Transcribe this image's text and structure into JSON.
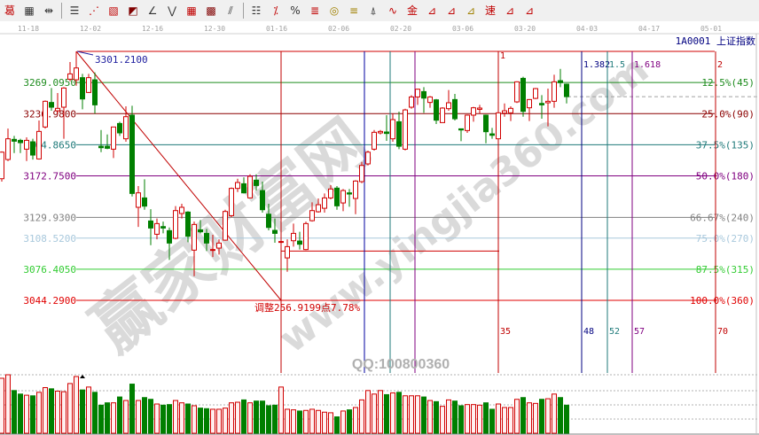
{
  "toolbar": {
    "icons": [
      {
        "name": "draw-text-icon",
        "glyph": "葛",
        "color": "#c00000"
      },
      {
        "name": "grid-icon",
        "glyph": "▦",
        "color": "#333333"
      },
      {
        "name": "measure-width-icon",
        "glyph": "⇹",
        "color": "#333333"
      },
      {
        "name": "sep"
      },
      {
        "name": "horizontal-lines-icon",
        "glyph": "☰",
        "color": "#333333"
      },
      {
        "name": "fan-lines-icon",
        "glyph": "⋰",
        "color": "#c00000"
      },
      {
        "name": "gann-box-icon",
        "glyph": "▧",
        "color": "#c00000"
      },
      {
        "name": "gann-square-icon",
        "glyph": "◩",
        "color": "#800000"
      },
      {
        "name": "angle-line-icon",
        "glyph": "∠",
        "color": "#333333"
      },
      {
        "name": "zigzag-icon",
        "glyph": "⋁",
        "color": "#333333"
      },
      {
        "name": "box-grid-icon",
        "glyph": "▦",
        "color": "#c00000"
      },
      {
        "name": "box-grid-2-icon",
        "glyph": "▩",
        "color": "#800000"
      },
      {
        "name": "parallel-lines-icon",
        "glyph": "⫽",
        "color": "#333333"
      },
      {
        "name": "sep"
      },
      {
        "name": "period-lines-icon",
        "glyph": "☷",
        "color": "#333333"
      },
      {
        "name": "percent-line-icon",
        "glyph": "⁒",
        "color": "#c00000"
      },
      {
        "name": "percent-icon",
        "glyph": "%",
        "color": "#333333"
      },
      {
        "name": "percent-levels-icon",
        "glyph": "≣",
        "color": "#c00000"
      },
      {
        "name": "golden-circle-icon",
        "glyph": "◎",
        "color": "#a08000"
      },
      {
        "name": "golden-levels-icon",
        "glyph": "≡",
        "color": "#a08000"
      },
      {
        "name": "arrow-marker-icon",
        "glyph": "⍋",
        "color": "#333333"
      },
      {
        "name": "wave-icon",
        "glyph": "∿",
        "color": "#c00000"
      },
      {
        "name": "golden-price-icon",
        "glyph": "金",
        "color": "#c00000"
      },
      {
        "name": "fan-icon",
        "glyph": "⊿",
        "color": "#c00000"
      },
      {
        "name": "fibonacci-fan-icon",
        "glyph": "⊿",
        "color": "#c00000"
      },
      {
        "name": "golden-fan-icon",
        "glyph": "⊿",
        "color": "#a08000"
      },
      {
        "name": "speed-line-icon",
        "glyph": "速",
        "color": "#c00000"
      },
      {
        "name": "gann-fan-icon",
        "glyph": "⊿",
        "color": "#c00000"
      },
      {
        "name": "quadrant-fan-icon",
        "glyph": "⊿",
        "color": "#c00000"
      }
    ]
  },
  "date_axis": [
    "11-18",
    "12-02",
    "12-16",
    "12-30",
    "01-16",
    "02-06",
    "02-20",
    "03-06",
    "03-20",
    "04-03",
    "04-17",
    "05-01"
  ],
  "instrument": "1A0001 上证指数",
  "adjustment_label": "调整256.9199点7.78%",
  "high_label": "3301.2100",
  "qq_label": "QQ:100800360",
  "watermark": {
    "main": "赢家财富网",
    "url": "www.yingjia360.com"
  },
  "colors": {
    "up": "#d00000",
    "down": "#007f00",
    "background": "#ffffff"
  },
  "chart_data": {
    "type": "candlestick",
    "ylim": [
      3044.29,
      3301.21
    ],
    "x_tick_labels": [
      "11-18",
      "12-02",
      "12-16",
      "12-30",
      "01-16",
      "02-06",
      "02-20",
      "03-06",
      "03-20",
      "04-03",
      "04-17",
      "05-01"
    ],
    "candles_ohlc": [
      [
        3169.8,
        3198.0,
        3166.8,
        3197.2
      ],
      [
        3189.6,
        3221.6,
        3188.0,
        3211.0
      ],
      [
        3210.4,
        3214.0,
        3196.3,
        3208.5
      ],
      [
        3209.4,
        3211.0,
        3196.3,
        3207.0
      ],
      [
        3200.3,
        3212.5,
        3188.1,
        3209.4
      ],
      [
        3207.9,
        3211.0,
        3189.6,
        3194.2
      ],
      [
        3190.2,
        3229.9,
        3189.6,
        3218.6
      ],
      [
        3223.2,
        3250.6,
        3221.6,
        3249.7
      ],
      [
        3248.5,
        3263.4,
        3239.9,
        3243.6
      ],
      [
        3239.9,
        3258.2,
        3236.9,
        3242.4
      ],
      [
        3243.6,
        3264.3,
        3211.0,
        3263.4
      ],
      [
        3272.5,
        3290.2,
        3270.4,
        3278.0
      ],
      [
        3271.9,
        3301.2,
        3265.8,
        3284.1
      ],
      [
        3274.1,
        3278.0,
        3241.4,
        3252.1
      ],
      [
        3258.8,
        3278.0,
        3258.2,
        3274.1
      ],
      [
        3271.9,
        3279.5,
        3236.9,
        3246.0
      ],
      [
        3203.3,
        3220.1,
        3197.2,
        3201.8
      ],
      [
        3203.3,
        3215.5,
        3200.3,
        3201.2
      ],
      [
        3200.3,
        3223.2,
        3191.2,
        3223.2
      ],
      [
        3226.8,
        3228.6,
        3214.0,
        3217.1
      ],
      [
        3211.0,
        3244.5,
        3207.9,
        3233.8
      ],
      [
        3235.4,
        3245.1,
        3151.5,
        3154.6
      ],
      [
        3140.3,
        3162.2,
        3120.1,
        3155.2
      ],
      [
        3150.0,
        3169.2,
        3137.8,
        3141.5
      ],
      [
        3126.2,
        3138.4,
        3101.2,
        3118.9
      ],
      [
        3112.5,
        3128.7,
        3107.3,
        3123.5
      ],
      [
        3120.4,
        3125.6,
        3113.4,
        3118.9
      ],
      [
        3116.2,
        3119.5,
        3086.0,
        3103.4
      ],
      [
        3108.3,
        3141.5,
        3107.3,
        3136.9
      ],
      [
        3133.9,
        3143.9,
        3128.7,
        3140.3
      ],
      [
        3135.4,
        3136.3,
        3104.3,
        3110.4
      ],
      [
        3096.1,
        3125.6,
        3069.2,
        3122.6
      ],
      [
        3117.1,
        3127.1,
        3113.4,
        3115.0
      ],
      [
        3113.4,
        3118.0,
        3095.1,
        3103.4
      ],
      [
        3095.8,
        3111.9,
        3089.0,
        3096.7
      ],
      [
        3098.2,
        3107.3,
        3091.5,
        3103.4
      ],
      [
        3106.4,
        3137.8,
        3105.8,
        3136.0
      ],
      [
        3131.7,
        3160.7,
        3130.2,
        3159.8
      ],
      [
        3159.8,
        3169.8,
        3156.1,
        3165.9
      ],
      [
        3164.6,
        3171.3,
        3154.6,
        3155.2
      ],
      [
        3150.0,
        3174.4,
        3149.4,
        3172.3
      ],
      [
        3168.3,
        3174.4,
        3157.6,
        3162.8
      ],
      [
        3157.6,
        3166.8,
        3134.8,
        3137.8
      ],
      [
        3133.2,
        3143.9,
        3116.5,
        3119.5
      ],
      [
        3116.5,
        3128.7,
        3103.7,
        3113.4
      ],
      [
        3104.3,
        3107.3,
        3098.2,
        3105.0
      ],
      [
        3088.1,
        3107.3,
        3073.8,
        3099.7
      ],
      [
        3105.8,
        3123.5,
        3099.7,
        3113.4
      ],
      [
        3105.5,
        3115.0,
        3096.7,
        3102.2
      ],
      [
        3096.7,
        3125.6,
        3096.1,
        3123.5
      ],
      [
        3126.5,
        3145.4,
        3125.6,
        3136.9
      ],
      [
        3135.7,
        3149.4,
        3134.8,
        3143.0
      ],
      [
        3139.3,
        3154.6,
        3134.8,
        3150.0
      ],
      [
        3150.0,
        3163.1,
        3148.5,
        3159.2
      ],
      [
        3160.1,
        3162.2,
        3137.8,
        3141.8
      ],
      [
        3144.8,
        3159.2,
        3136.3,
        3157.6
      ],
      [
        3155.2,
        3159.2,
        3140.9,
        3154.0
      ],
      [
        3149.4,
        3168.3,
        3133.2,
        3167.4
      ],
      [
        3166.8,
        3187.2,
        3165.2,
        3183.5
      ],
      [
        3185.1,
        3198.8,
        3183.5,
        3197.2
      ],
      [
        3200.3,
        3220.1,
        3198.8,
        3217.7
      ],
      [
        3217.1,
        3220.1,
        3215.5,
        3218.6
      ],
      [
        3218.0,
        3235.4,
        3208.9,
        3216.5
      ],
      [
        3211.0,
        3236.9,
        3207.9,
        3230.8
      ],
      [
        3228.6,
        3239.0,
        3200.3,
        3203.3
      ],
      [
        3200.3,
        3242.0,
        3199.0,
        3240.8
      ],
      [
        3243.6,
        3256.0,
        3242.0,
        3254.2
      ],
      [
        3254.2,
        3262.8,
        3246.0,
        3262.2
      ],
      [
        3259.7,
        3264.3,
        3237.8,
        3253.0
      ],
      [
        3248.5,
        3255.2,
        3243.0,
        3254.2
      ],
      [
        3251.2,
        3252.1,
        3226.2,
        3230.2
      ],
      [
        3227.7,
        3243.6,
        3227.7,
        3242.7
      ],
      [
        3242.1,
        3261.3,
        3239.9,
        3248.2
      ],
      [
        3251.5,
        3257.3,
        3229.9,
        3231.7
      ],
      [
        3221.3,
        3221.3,
        3208.5,
        3220.1
      ],
      [
        3219.5,
        3236.0,
        3217.1,
        3235.4
      ],
      [
        3235.4,
        3244.0,
        3228.6,
        3243.0
      ],
      [
        3241.4,
        3246.0,
        3236.9,
        3242.7
      ],
      [
        3235.4,
        3236.0,
        3206.4,
        3218.3
      ],
      [
        3216.1,
        3222.2,
        3211.0,
        3214.6
      ],
      [
        3211.0,
        3238.5,
        3210.0,
        3237.8
      ],
      [
        3237.5,
        3247.5,
        3233.8,
        3239.9
      ],
      [
        3237.8,
        3244.5,
        3229.3,
        3242.4
      ],
      [
        3249.1,
        3270.4,
        3248.0,
        3269.8
      ],
      [
        3273.4,
        3275.0,
        3233.8,
        3239.3
      ],
      [
        3243.0,
        3252.0,
        3229.3,
        3251.5
      ],
      [
        3252.7,
        3263.5,
        3252.0,
        3262.8
      ],
      [
        3247.5,
        3256.1,
        3231.7,
        3246.0
      ],
      [
        3248.2,
        3262.8,
        3223.8,
        3249.7
      ],
      [
        3249.7,
        3277.1,
        3243.0,
        3269.8
      ],
      [
        3271.0,
        3283.2,
        3264.3,
        3268.9
      ],
      [
        3267.4,
        3268.0,
        3247.5,
        3254.5
      ]
    ],
    "volume_relative_pct": [
      94,
      100,
      73,
      67,
      65,
      64,
      70,
      78,
      76,
      72,
      71,
      85,
      97,
      74,
      79,
      70,
      48,
      52,
      52,
      62,
      56,
      84,
      56,
      61,
      58,
      50,
      48,
      49,
      56,
      52,
      50,
      47,
      43,
      42,
      41,
      41,
      43,
      52,
      53,
      57,
      52,
      55,
      55,
      47,
      48,
      79,
      41,
      40,
      38,
      39,
      41,
      39,
      36,
      35,
      28,
      38,
      40,
      44,
      57,
      73,
      67,
      73,
      66,
      69,
      70,
      64,
      64,
      64,
      62,
      56,
      54,
      46,
      57,
      55,
      47,
      49,
      49,
      48,
      52,
      41,
      50,
      44,
      44,
      58,
      61,
      52,
      51,
      58,
      59,
      67,
      61,
      48
    ],
    "price_levels": [
      {
        "price_label": "3269.0950",
        "pct_label": "12.5%(45)",
        "value": 3269.095,
        "color": "#1e8c1e"
      },
      {
        "price_label": "3236.9800",
        "pct_label": "25.0%(90)",
        "value": 3236.98,
        "color": "#8b0000"
      },
      {
        "price_label": "3204.8650",
        "pct_label": "37.5%(135)",
        "value": 3204.865,
        "color": "#1f7a7a"
      },
      {
        "price_label": "3172.7500",
        "pct_label": "50.0%(180)",
        "value": 3172.75,
        "color": "#800080"
      },
      {
        "price_label": "3129.9300",
        "pct_label": "66.67%(240)",
        "value": 3129.93,
        "color": "#808080"
      },
      {
        "price_label": "3108.5200",
        "pct_label": "75.0%(270)",
        "value": 3108.52,
        "color": "#a8c8dc"
      },
      {
        "price_label": "3076.4050",
        "pct_label": "87.5%(315)",
        "value": 3076.405,
        "color": "#33cc33"
      },
      {
        "price_label": "3044.2900",
        "pct_label": "100.0%(360)",
        "value": 3044.29,
        "color": "#e00000"
      }
    ],
    "high": {
      "value": 3301.21,
      "bar": 13
    },
    "low": {
      "value": 3044.29,
      "bar": 46
    },
    "retrace_line_value": 3095.2,
    "last_close": 3254.5,
    "time_cycle": {
      "start_bar": 46,
      "base_bars": 35,
      "lines": [
        {
          "ratio": 0.382,
          "top_label": "",
          "bottom_label": "",
          "color": "#0000a0"
        },
        {
          "ratio": 0.5,
          "top_label": "",
          "bottom_label": "",
          "color": "#1f7a7a"
        },
        {
          "ratio": 0.618,
          "top_label": "",
          "bottom_label": "",
          "color": "#800080"
        },
        {
          "ratio": 1,
          "top_label": "1",
          "bottom_label": "35",
          "color": "#c00000"
        },
        {
          "ratio": 1.382,
          "top_label": "1.382",
          "bottom_label": "48",
          "color": "#000080"
        },
        {
          "ratio": 1.5,
          "top_label": "1.5",
          "bottom_label": "52",
          "color": "#1f7a7a"
        },
        {
          "ratio": 1.618,
          "top_label": "1.618",
          "bottom_label": "57",
          "color": "#800080"
        },
        {
          "ratio": 2,
          "top_label": "2",
          "bottom_label": "70",
          "color": "#c00000"
        }
      ]
    }
  }
}
